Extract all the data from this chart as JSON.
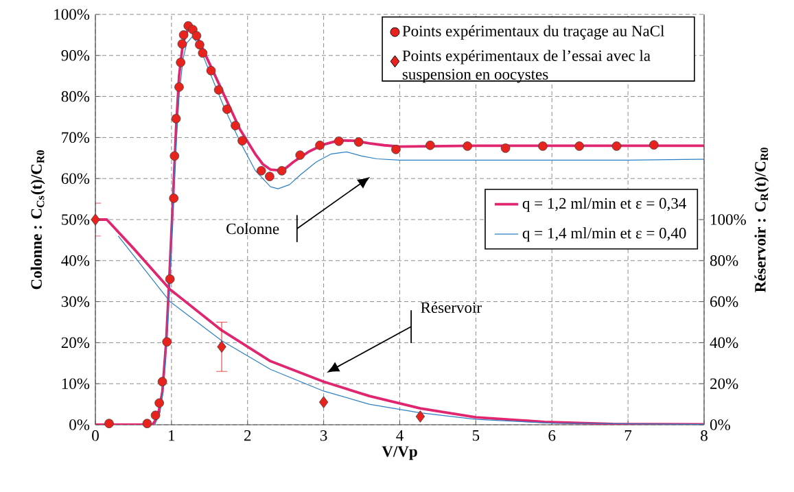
{
  "chart_data": {
    "type": "line",
    "xlabel": "V/Vp",
    "ylabel": "Colonne : C$_{Cs}$(t)/C$_{R0}$",
    "y2label": "Réservoir : C$_{R}$(t)/C$_{R0}$",
    "xlim": [
      0,
      8
    ],
    "xticks": [
      0,
      1,
      2,
      3,
      4,
      5,
      6,
      7,
      8
    ],
    "ylim": [
      0,
      100
    ],
    "yticks": [
      {
        "value": 0,
        "label": "0%"
      },
      {
        "value": 10,
        "label": "10%"
      },
      {
        "value": 20,
        "label": "20%"
      },
      {
        "value": 30,
        "label": "30%"
      },
      {
        "value": 40,
        "label": "40%"
      },
      {
        "value": 50,
        "label": "50%"
      },
      {
        "value": 60,
        "label": "60%"
      },
      {
        "value": 70,
        "label": "70%"
      },
      {
        "value": 80,
        "label": "80%"
      },
      {
        "value": 90,
        "label": "90%"
      },
      {
        "value": 100,
        "label": "100%"
      }
    ],
    "y2lim": [
      0,
      200
    ],
    "y2ticks": [
      {
        "value": 0,
        "label": "0%"
      },
      {
        "value": 20,
        "label": "20%"
      },
      {
        "value": 40,
        "label": "40%"
      },
      {
        "value": 60,
        "label": "60%"
      },
      {
        "value": 80,
        "label": "80%"
      },
      {
        "value": 100,
        "label": "100%"
      }
    ],
    "grid": true,
    "legend": "top right",
    "annotations": [
      "Colonne",
      "Réservoir"
    ],
    "series": [
      {
        "name": "q = 1,2 ml/min et ε = 0,34",
        "color": "#e0266e",
        "x": [
          0,
          0.75,
          0.82,
          0.88,
          0.93,
          0.97,
          1.02,
          1.06,
          1.1,
          1.15,
          1.22,
          1.3,
          1.4,
          1.5,
          1.6,
          1.7,
          1.8,
          1.9,
          2.0,
          2.1,
          2.2,
          2.3,
          2.4,
          2.5,
          2.6,
          2.8,
          3.0,
          3.2,
          3.4,
          3.6,
          3.8,
          4.0,
          5.0,
          6.0,
          7.0,
          8.0
        ],
        "values": [
          0,
          0,
          2,
          8,
          20,
          35,
          55,
          72,
          85,
          93,
          96.5,
          96,
          92,
          88,
          84,
          80,
          76,
          72,
          69,
          66,
          63.5,
          62.2,
          62,
          62.5,
          64,
          66.5,
          68.3,
          69.3,
          69.2,
          68.6,
          68.1,
          67.8,
          68,
          68,
          68,
          68
        ]
      },
      {
        "name": "q = 1,4 ml/min et ε = 0,40",
        "color": "#2a7fc4",
        "x": [
          0.78,
          0.85,
          0.9,
          0.95,
          1.0,
          1.05,
          1.1,
          1.15,
          1.2,
          1.27,
          1.35,
          1.5,
          1.7,
          1.9,
          2.1,
          2.3,
          2.4,
          2.55,
          2.7,
          2.9,
          3.1,
          3.3,
          3.5,
          3.7,
          4.0,
          5.0,
          6.0,
          7.0,
          8.0
        ],
        "values": [
          0,
          3,
          10,
          25,
          45,
          65,
          80,
          89,
          93,
          94.5,
          93,
          86,
          77,
          69,
          62,
          58,
          57.5,
          58.5,
          61,
          64,
          66,
          66.5,
          65.5,
          64.8,
          64.5,
          64.5,
          64.5,
          64.5,
          64.7
        ]
      },
      {
        "axis": "y2",
        "color": "#e0266e",
        "x": [
          0,
          0.15,
          0.5,
          0.98,
          1.66,
          2.3,
          3.0,
          3.6,
          4.27,
          5.0,
          5.9,
          6.8,
          8.0
        ],
        "values": [
          100,
          100,
          86,
          66,
          46,
          31,
          21,
          14,
          8,
          3.6,
          1.4,
          0.4,
          0.2
        ]
      },
      {
        "axis": "y2",
        "color": "#2a7fc4",
        "x": [
          0.3,
          0.98,
          1.66,
          2.3,
          3.0,
          3.6,
          4.27,
          5.0,
          6.0,
          8.0
        ],
        "values": [
          92,
          60,
          41,
          27,
          16.4,
          10,
          5.8,
          2.6,
          0.8,
          0.2
        ]
      },
      {
        "name": "Points expérimentaux du traçage au NaCl",
        "type": "scatter",
        "marker": "circle",
        "color": "#e8231e",
        "x": [
          0.18,
          0.68,
          0.79,
          0.84,
          0.88,
          0.94,
          0.98,
          1.03,
          1.04,
          1.06,
          1.1,
          1.12,
          1.14,
          1.16,
          1.22,
          1.28,
          1.33,
          1.37,
          1.41,
          1.52,
          1.62,
          1.73,
          1.84,
          1.93,
          2.18,
          2.29,
          2.45,
          2.69,
          2.95,
          3.2,
          3.46,
          3.95,
          4.4,
          4.89,
          5.39,
          5.88,
          6.36,
          6.85,
          7.34
        ],
        "values": [
          0.3,
          0.3,
          2.3,
          5.3,
          10.5,
          20.2,
          35.5,
          55.2,
          65.5,
          74.6,
          82.3,
          88.3,
          92.8,
          95,
          97.2,
          96.3,
          94.8,
          92.6,
          90.6,
          86.3,
          81.6,
          76.9,
          72.9,
          69.2,
          61.9,
          60.5,
          61.9,
          65.7,
          68.1,
          69.1,
          68.9,
          67.1,
          68.1,
          67.9,
          67.4,
          67.9,
          67.9,
          67.9,
          68.2
        ]
      },
      {
        "name": "Points expérimentaux de l’essai avec la suspension en oocystes",
        "type": "scatter",
        "marker": "diamond",
        "axis": "y2",
        "color": "#e8231e",
        "x": [
          0,
          1.66,
          3.0,
          4.27
        ],
        "values": [
          100,
          38,
          11,
          4
        ],
        "errors": [
          8,
          [
            26,
            50
          ],
          null,
          null
        ]
      }
    ]
  }
}
